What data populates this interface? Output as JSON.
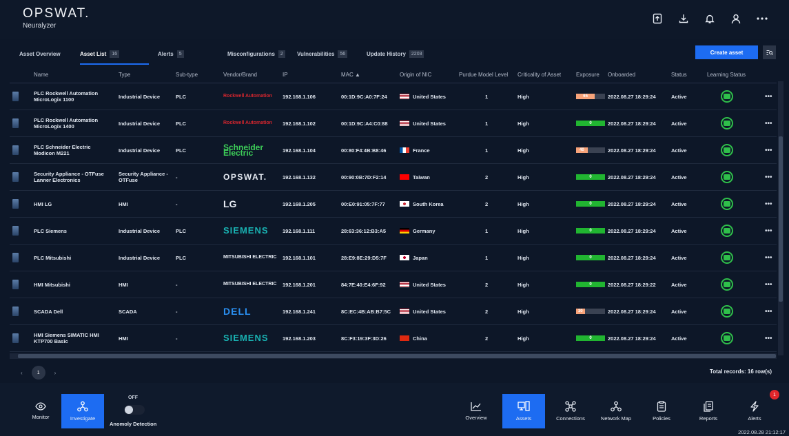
{
  "header": {
    "logo": "OPSWAT.",
    "product": "Neuralyzer",
    "icons": [
      "upload-icon",
      "download-icon",
      "bell-icon",
      "user-icon",
      "more-icon"
    ]
  },
  "tabs": [
    {
      "label": "Asset Overview",
      "count": ""
    },
    {
      "label": "Asset List",
      "count": "16"
    },
    {
      "label": "Alerts",
      "count": "5"
    },
    {
      "label": "Misconfigurations",
      "count": "2"
    },
    {
      "label": "Vulnerabilities",
      "count": "56"
    },
    {
      "label": "Update History",
      "count": "2203"
    }
  ],
  "create_button": "Create asset",
  "columns": [
    "Name",
    "Type",
    "Sub-type",
    "Vendor/Brand",
    "IP",
    "MAC ▲",
    "Origin of NIC",
    "Purdue Model Level",
    "Criticality of Asset",
    "Exposure",
    "Onboarded",
    "Status",
    "Learning Status"
  ],
  "rows": [
    {
      "name": "PLC Rockwell Automation MicroLogix 1100",
      "type": "Industrial Device",
      "subtype": "PLC",
      "vendor": "Rockwell Automation",
      "ip": "192.168.1.106",
      "mac": "00:1D:9C:A0:7F:24",
      "origin": "United States",
      "purdue": "1",
      "criticality": "High",
      "exposure": 65,
      "exposure_color": "#f7a37a",
      "onboarded": "2022.08.27 18:29:24",
      "status": "Active"
    },
    {
      "name": "PLC Rockwell Automation MicroLogix 1400",
      "type": "Industrial Device",
      "subtype": "PLC",
      "vendor": "Rockwell Automation",
      "ip": "192.168.1.102",
      "mac": "00:1D:9C:A4:C0:88",
      "origin": "United States",
      "purdue": "1",
      "criticality": "High",
      "exposure": 0,
      "exposure_color": "#21b531",
      "onboarded": "2022.08.27 18:29:24",
      "status": "Active"
    },
    {
      "name": "PLC Schneider Electric Modicon M221",
      "type": "Industrial Device",
      "subtype": "PLC",
      "vendor": "Schneider Electric",
      "ip": "192.168.1.104",
      "mac": "00:80:F4:4B:B8:46",
      "origin": "France",
      "purdue": "1",
      "criticality": "High",
      "exposure": 40,
      "exposure_color": "#f7a37a",
      "onboarded": "2022.08.27 18:29:24",
      "status": "Active"
    },
    {
      "name": "Security Appliance - OTFuse Lanner Electronics",
      "type": "Security Appliance - OTFuse",
      "subtype": "-",
      "vendor": "OPSWAT.",
      "ip": "192.168.1.132",
      "mac": "00:90:0B:7D:F2:14",
      "origin": "Taiwan",
      "purdue": "2",
      "criticality": "High",
      "exposure": 0,
      "exposure_color": "#21b531",
      "onboarded": "2022.08.27 18:29:24",
      "status": "Active"
    },
    {
      "name": "HMI LG",
      "type": "HMI",
      "subtype": "-",
      "vendor": "LG",
      "ip": "192.168.1.205",
      "mac": "00:E0:91:05:7F:77",
      "origin": "South Korea",
      "purdue": "2",
      "criticality": "High",
      "exposure": 0,
      "exposure_color": "#21b531",
      "onboarded": "2022.08.27 18:29:24",
      "status": "Active"
    },
    {
      "name": "PLC Siemens",
      "type": "Industrial Device",
      "subtype": "PLC",
      "vendor": "SIEMENS",
      "ip": "192.168.1.111",
      "mac": "28:63:36:12:B3:A5",
      "origin": "Germany",
      "purdue": "1",
      "criticality": "High",
      "exposure": 0,
      "exposure_color": "#21b531",
      "onboarded": "2022.08.27 18:29:24",
      "status": "Active"
    },
    {
      "name": "PLC Mitsubishi",
      "type": "Industrial Device",
      "subtype": "PLC",
      "vendor": "MITSUBISHI ELECTRIC",
      "ip": "192.168.1.101",
      "mac": "28:E9:8E:29:D5:7F",
      "origin": "Japan",
      "purdue": "1",
      "criticality": "High",
      "exposure": 0,
      "exposure_color": "#21b531",
      "onboarded": "2022.08.27 18:29:24",
      "status": "Active"
    },
    {
      "name": "HMI Mitsubishi",
      "type": "HMI",
      "subtype": "-",
      "vendor": "MITSUBISHI ELECTRIC",
      "ip": "192.168.1.201",
      "mac": "84:7E:40:E4:6F:92",
      "origin": "United States",
      "purdue": "2",
      "criticality": "High",
      "exposure": 0,
      "exposure_color": "#21b531",
      "onboarded": "2022.08.27 18:29:22",
      "status": "Active"
    },
    {
      "name": "SCADA Dell",
      "type": "SCADA",
      "subtype": "-",
      "vendor": "DELL",
      "ip": "192.168.1.241",
      "mac": "8C:EC:4B:AB:B7:5C",
      "origin": "United States",
      "purdue": "2",
      "criticality": "High",
      "exposure": 30,
      "exposure_color": "#f7a37a",
      "onboarded": "2022.08.27 18:29:24",
      "status": "Active"
    },
    {
      "name": "HMI Siemens SIMATIC HMI KTP700 Basic",
      "type": "HMI",
      "subtype": "-",
      "vendor": "SIEMENS",
      "ip": "192.168.1.203",
      "mac": "8C:F3:19:3F:3D:26",
      "origin": "China",
      "purdue": "2",
      "criticality": "High",
      "exposure": 0,
      "exposure_color": "#21b531",
      "onboarded": "2022.08.27 18:29:24",
      "status": "Active"
    }
  ],
  "pagination": {
    "prev": "‹",
    "page": "1",
    "next": "›"
  },
  "total": "Total records: 16 row(s)",
  "bottom_nav": {
    "left": [
      {
        "label": "Monitor"
      },
      {
        "label": "Investigate"
      }
    ],
    "toggle_state": "OFF",
    "toggle_label": "Anomoly Detection",
    "right": [
      {
        "label": "Overview"
      },
      {
        "label": "Assets"
      },
      {
        "label": "Connections"
      },
      {
        "label": "Network Map"
      },
      {
        "label": "Policies"
      },
      {
        "label": "Reports"
      },
      {
        "label": "Alerts"
      }
    ],
    "alert_badge": "1"
  },
  "clock": "2022.08.28 21:12:17"
}
